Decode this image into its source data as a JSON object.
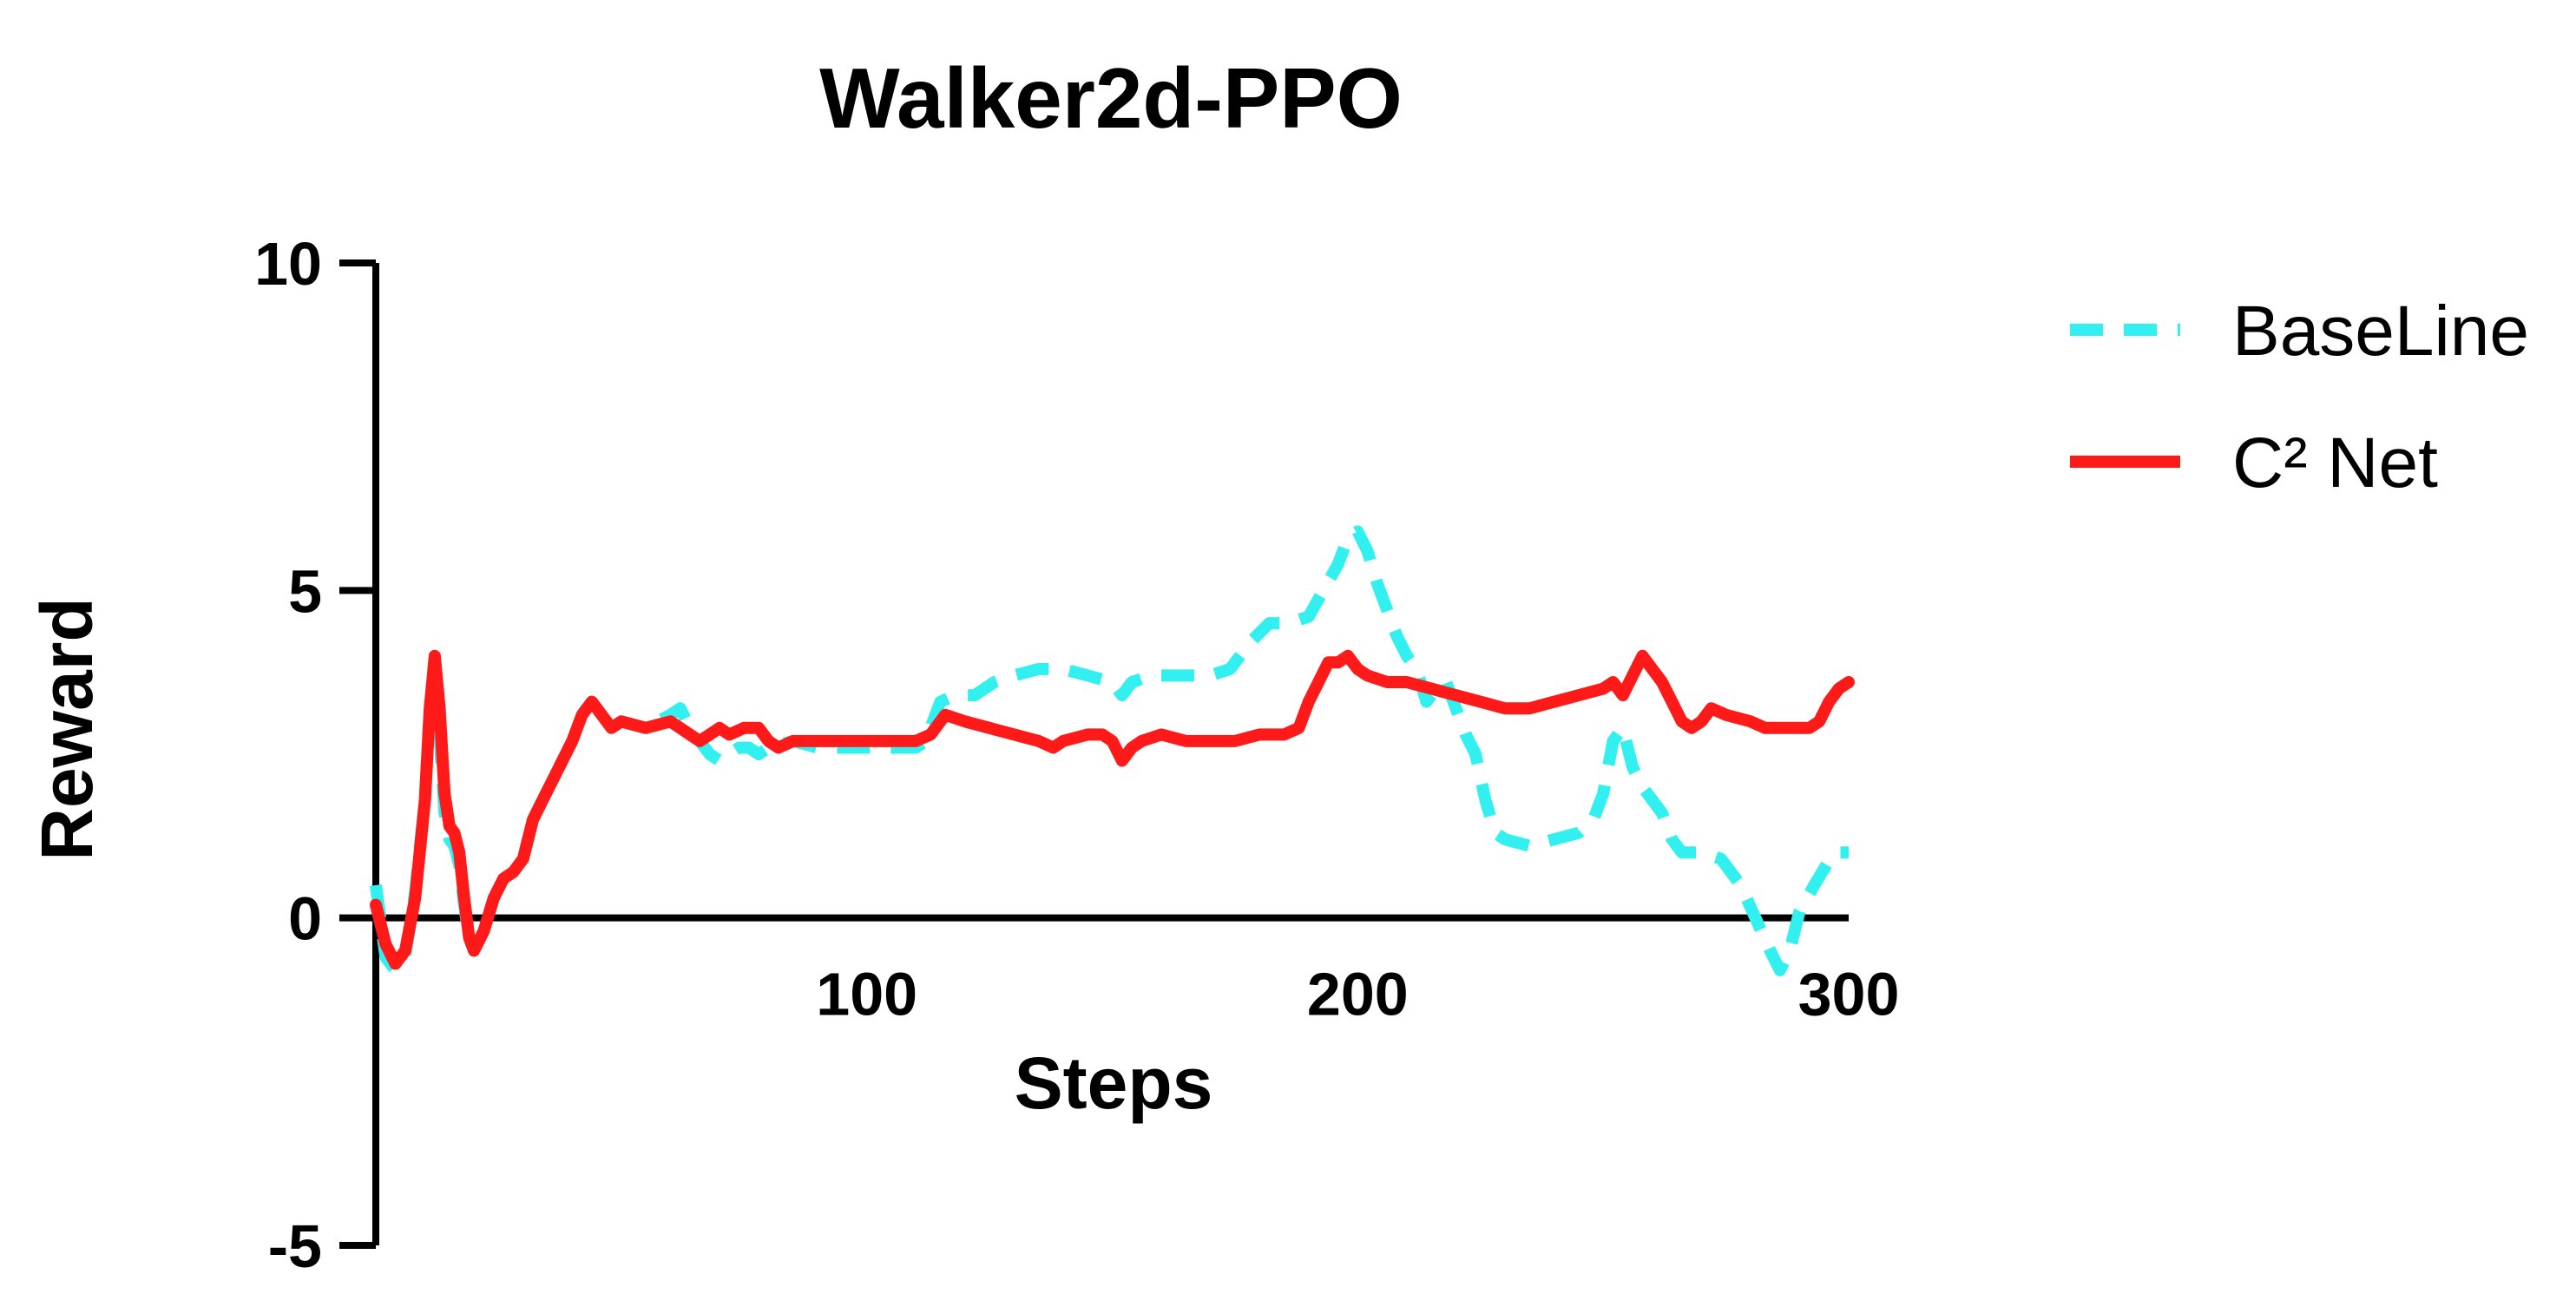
{
  "chart_data": {
    "type": "line",
    "title": "Walker2d-PPO",
    "xlabel": "Steps",
    "ylabel": "Reward",
    "xlim": [
      0,
      300
    ],
    "ylim": [
      -5,
      10
    ],
    "x_ticks": [
      100,
      200,
      300
    ],
    "y_ticks": [
      -5,
      0,
      5,
      10
    ],
    "grid": false,
    "legend_position": "top-right",
    "series": [
      {
        "name": "BaseLine",
        "color": "#33f0f0",
        "style": "dashed",
        "points": [
          [
            0,
            0.5
          ],
          [
            2,
            -0.6
          ],
          [
            4,
            -0.8
          ],
          [
            6,
            -0.6
          ],
          [
            8,
            0.4
          ],
          [
            10,
            1.8
          ],
          [
            11,
            3.2
          ],
          [
            12,
            3.6
          ],
          [
            13,
            2.8
          ],
          [
            14,
            1.6
          ],
          [
            15,
            1.2
          ],
          [
            16,
            1.1
          ],
          [
            17,
            0.8
          ],
          [
            18,
            0.2
          ],
          [
            19,
            -0.3
          ],
          [
            20,
            -0.5
          ],
          [
            22,
            -0.2
          ],
          [
            24,
            0.3
          ],
          [
            26,
            0.6
          ],
          [
            28,
            0.7
          ],
          [
            30,
            0.9
          ],
          [
            32,
            1.5
          ],
          [
            34,
            1.8
          ],
          [
            36,
            2.1
          ],
          [
            38,
            2.4
          ],
          [
            40,
            2.7
          ],
          [
            42,
            3.1
          ],
          [
            44,
            3.3
          ],
          [
            46,
            3.1
          ],
          [
            48,
            2.9
          ],
          [
            50,
            3.0
          ],
          [
            55,
            2.9
          ],
          [
            60,
            3.1
          ],
          [
            62,
            3.2
          ],
          [
            64,
            2.9
          ],
          [
            66,
            2.7
          ],
          [
            68,
            2.5
          ],
          [
            70,
            2.4
          ],
          [
            72,
            2.5
          ],
          [
            74,
            2.6
          ],
          [
            76,
            2.6
          ],
          [
            78,
            2.5
          ],
          [
            80,
            2.6
          ],
          [
            85,
            2.7
          ],
          [
            90,
            2.6
          ],
          [
            95,
            2.6
          ],
          [
            100,
            2.6
          ],
          [
            105,
            2.6
          ],
          [
            110,
            2.6
          ],
          [
            112,
            2.7
          ],
          [
            115,
            3.3
          ],
          [
            118,
            3.4
          ],
          [
            122,
            3.4
          ],
          [
            126,
            3.6
          ],
          [
            130,
            3.7
          ],
          [
            135,
            3.8
          ],
          [
            140,
            3.8
          ],
          [
            145,
            3.7
          ],
          [
            150,
            3.6
          ],
          [
            152,
            3.4
          ],
          [
            154,
            3.6
          ],
          [
            158,
            3.7
          ],
          [
            165,
            3.7
          ],
          [
            170,
            3.7
          ],
          [
            174,
            3.8
          ],
          [
            178,
            4.2
          ],
          [
            182,
            4.5
          ],
          [
            186,
            4.5
          ],
          [
            190,
            4.6
          ],
          [
            193,
            5.0
          ],
          [
            196,
            5.4
          ],
          [
            198,
            5.8
          ],
          [
            200,
            5.9
          ],
          [
            202,
            5.6
          ],
          [
            204,
            5.1
          ],
          [
            206,
            4.7
          ],
          [
            208,
            4.3
          ],
          [
            210,
            4.0
          ],
          [
            212,
            3.8
          ],
          [
            214,
            3.3
          ],
          [
            216,
            3.5
          ],
          [
            218,
            3.6
          ],
          [
            220,
            3.2
          ],
          [
            222,
            2.8
          ],
          [
            224,
            2.5
          ],
          [
            226,
            1.8
          ],
          [
            228,
            1.3
          ],
          [
            230,
            1.2
          ],
          [
            235,
            1.1
          ],
          [
            240,
            1.2
          ],
          [
            245,
            1.3
          ],
          [
            248,
            1.5
          ],
          [
            250,
            1.9
          ],
          [
            252,
            2.7
          ],
          [
            254,
            2.9
          ],
          [
            256,
            2.3
          ],
          [
            258,
            2.0
          ],
          [
            260,
            1.8
          ],
          [
            262,
            1.6
          ],
          [
            264,
            1.2
          ],
          [
            266,
            1.0
          ],
          [
            270,
            1.0
          ],
          [
            274,
            0.9
          ],
          [
            278,
            0.5
          ],
          [
            281,
            0.0
          ],
          [
            284,
            -0.5
          ],
          [
            286,
            -0.8
          ],
          [
            288,
            -0.5
          ],
          [
            290,
            0.1
          ],
          [
            293,
            0.5
          ],
          [
            297,
            1.0
          ],
          [
            300,
            1.0
          ]
        ]
      },
      {
        "name": "C² Net",
        "color": "#ff1a1a",
        "style": "solid",
        "points": [
          [
            0,
            0.2
          ],
          [
            2,
            -0.4
          ],
          [
            4,
            -0.7
          ],
          [
            6,
            -0.5
          ],
          [
            8,
            0.3
          ],
          [
            10,
            1.8
          ],
          [
            11,
            3.2
          ],
          [
            12,
            4.0
          ],
          [
            13,
            3.2
          ],
          [
            14,
            1.9
          ],
          [
            15,
            1.4
          ],
          [
            16,
            1.3
          ],
          [
            17,
            1.0
          ],
          [
            18,
            0.3
          ],
          [
            19,
            -0.3
          ],
          [
            20,
            -0.5
          ],
          [
            22,
            -0.2
          ],
          [
            24,
            0.3
          ],
          [
            26,
            0.6
          ],
          [
            28,
            0.7
          ],
          [
            30,
            0.9
          ],
          [
            32,
            1.5
          ],
          [
            34,
            1.8
          ],
          [
            36,
            2.1
          ],
          [
            38,
            2.4
          ],
          [
            40,
            2.7
          ],
          [
            42,
            3.1
          ],
          [
            44,
            3.3
          ],
          [
            46,
            3.1
          ],
          [
            48,
            2.9
          ],
          [
            50,
            3.0
          ],
          [
            55,
            2.9
          ],
          [
            60,
            3.0
          ],
          [
            62,
            2.9
          ],
          [
            64,
            2.8
          ],
          [
            66,
            2.7
          ],
          [
            68,
            2.8
          ],
          [
            70,
            2.9
          ],
          [
            72,
            2.8
          ],
          [
            75,
            2.9
          ],
          [
            78,
            2.9
          ],
          [
            80,
            2.7
          ],
          [
            82,
            2.6
          ],
          [
            85,
            2.7
          ],
          [
            90,
            2.7
          ],
          [
            95,
            2.7
          ],
          [
            100,
            2.7
          ],
          [
            105,
            2.7
          ],
          [
            110,
            2.7
          ],
          [
            113,
            2.8
          ],
          [
            116,
            3.1
          ],
          [
            120,
            3.0
          ],
          [
            125,
            2.9
          ],
          [
            130,
            2.8
          ],
          [
            135,
            2.7
          ],
          [
            138,
            2.6
          ],
          [
            140,
            2.7
          ],
          [
            145,
            2.8
          ],
          [
            148,
            2.8
          ],
          [
            150,
            2.7
          ],
          [
            152,
            2.4
          ],
          [
            154,
            2.6
          ],
          [
            156,
            2.7
          ],
          [
            160,
            2.8
          ],
          [
            165,
            2.7
          ],
          [
            170,
            2.7
          ],
          [
            175,
            2.7
          ],
          [
            180,
            2.8
          ],
          [
            185,
            2.8
          ],
          [
            188,
            2.9
          ],
          [
            190,
            3.3
          ],
          [
            192,
            3.6
          ],
          [
            194,
            3.9
          ],
          [
            196,
            3.9
          ],
          [
            198,
            4.0
          ],
          [
            200,
            3.8
          ],
          [
            202,
            3.7
          ],
          [
            206,
            3.6
          ],
          [
            210,
            3.6
          ],
          [
            215,
            3.5
          ],
          [
            220,
            3.4
          ],
          [
            225,
            3.3
          ],
          [
            230,
            3.2
          ],
          [
            235,
            3.2
          ],
          [
            240,
            3.3
          ],
          [
            245,
            3.4
          ],
          [
            250,
            3.5
          ],
          [
            252,
            3.6
          ],
          [
            254,
            3.4
          ],
          [
            256,
            3.7
          ],
          [
            258,
            4.0
          ],
          [
            260,
            3.8
          ],
          [
            262,
            3.6
          ],
          [
            264,
            3.3
          ],
          [
            266,
            3.0
          ],
          [
            268,
            2.9
          ],
          [
            270,
            3.0
          ],
          [
            272,
            3.2
          ],
          [
            275,
            3.1
          ],
          [
            280,
            3.0
          ],
          [
            283,
            2.9
          ],
          [
            285,
            2.9
          ],
          [
            287,
            2.9
          ],
          [
            290,
            2.9
          ],
          [
            292,
            2.9
          ],
          [
            294,
            3.0
          ],
          [
            296,
            3.3
          ],
          [
            298,
            3.5
          ],
          [
            300,
            3.6
          ]
        ]
      }
    ]
  }
}
